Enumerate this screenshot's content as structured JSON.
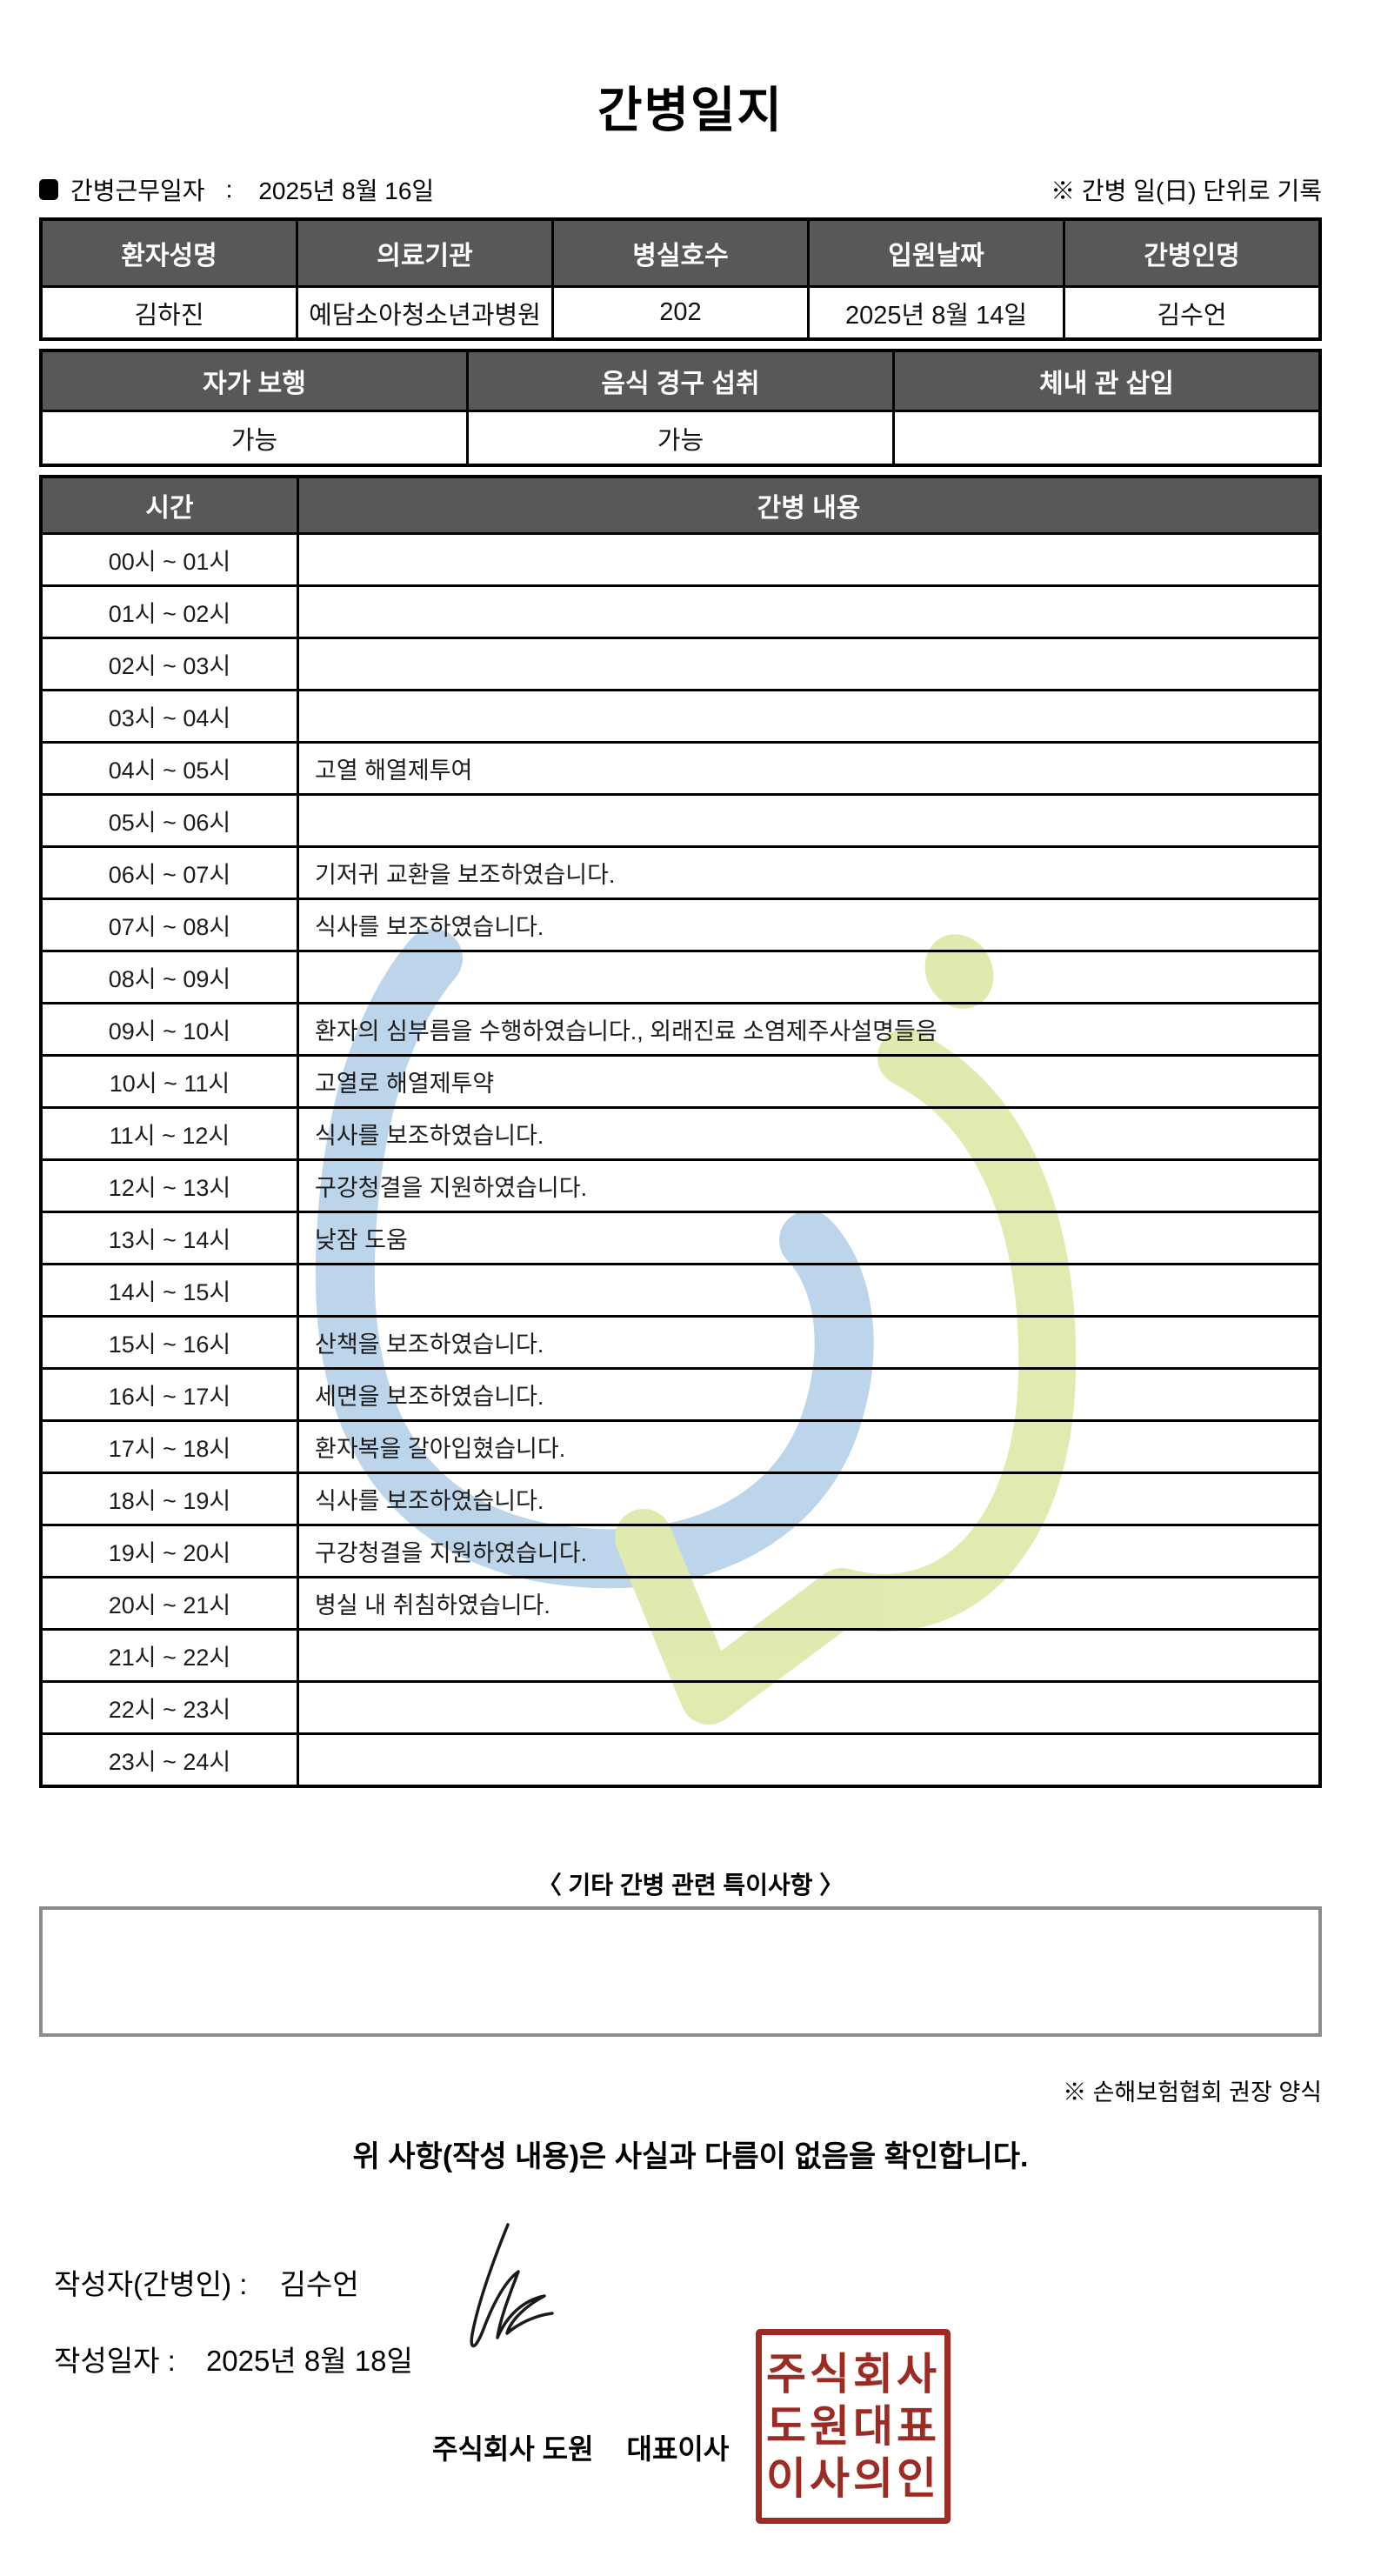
{
  "title": "간병일지",
  "meta": {
    "work_date_label": "간병근무일자",
    "work_date_separator": ":",
    "work_date_value": "2025년 8월 16일",
    "unit_note": "※ 간병 일(日) 단위로 기록"
  },
  "icons": {
    "work_date_bullet": "filled-black-square",
    "watermark": "blue-green-swirl-logo",
    "signature": "handwritten-signature-scribble"
  },
  "patient_table": {
    "headers": [
      "환자성명",
      "의료기관",
      "병실호수",
      "입원날짜",
      "간병인명"
    ],
    "values": [
      "김하진",
      "예담소아청소년과병원",
      "202",
      "2025년 8월 14일",
      "김수언"
    ]
  },
  "status_table": {
    "headers": [
      "자가 보행",
      "음식 경구 섭취",
      "체내 관 삽입"
    ],
    "values": [
      "가능",
      "가능",
      ""
    ]
  },
  "care_table": {
    "time_header": "시간",
    "content_header": "간병 내용",
    "rows": [
      {
        "time": "00시 ~ 01시",
        "content": ""
      },
      {
        "time": "01시 ~ 02시",
        "content": ""
      },
      {
        "time": "02시 ~ 03시",
        "content": ""
      },
      {
        "time": "03시 ~ 04시",
        "content": ""
      },
      {
        "time": "04시 ~ 05시",
        "content": "고열 해열제투여"
      },
      {
        "time": "05시 ~ 06시",
        "content": ""
      },
      {
        "time": "06시 ~ 07시",
        "content": "기저귀 교환을 보조하였습니다."
      },
      {
        "time": "07시 ~ 08시",
        "content": "식사를 보조하였습니다."
      },
      {
        "time": "08시 ~ 09시",
        "content": ""
      },
      {
        "time": "09시 ~ 10시",
        "content": "환자의 심부름을 수행하였습니다., 외래진료 소염제주사설명들음"
      },
      {
        "time": "10시 ~ 11시",
        "content": "고열로 해열제투약"
      },
      {
        "time": "11시 ~ 12시",
        "content": "식사를 보조하였습니다."
      },
      {
        "time": "12시 ~ 13시",
        "content": "구강청결을 지원하였습니다."
      },
      {
        "time": "13시 ~ 14시",
        "content": "낮잠 도움"
      },
      {
        "time": "14시 ~ 15시",
        "content": ""
      },
      {
        "time": "15시 ~ 16시",
        "content": "산책을 보조하였습니다."
      },
      {
        "time": "16시 ~ 17시",
        "content": "세면을 보조하였습니다."
      },
      {
        "time": "17시 ~ 18시",
        "content": "환자복을 갈아입혔습니다."
      },
      {
        "time": "18시 ~ 19시",
        "content": "식사를 보조하였습니다."
      },
      {
        "time": "19시 ~ 20시",
        "content": "구강청결을 지원하였습니다."
      },
      {
        "time": "20시 ~ 21시",
        "content": "병실 내 취침하였습니다."
      },
      {
        "time": "21시 ~ 22시",
        "content": ""
      },
      {
        "time": "22시 ~ 23시",
        "content": ""
      },
      {
        "time": "23시 ~ 24시",
        "content": ""
      }
    ]
  },
  "notes": {
    "heading": "〈 기타 간병 관련 특이사항 〉",
    "content": "",
    "form_note": "※ 손해보험협회 권장 양식"
  },
  "confirmation": {
    "statement": "위 사항(작성 내용)은 사실과 다름이 없음을 확인합니다.",
    "writer_label": "작성자(간병인) :",
    "writer_name": "김수언",
    "date_label": "작성일자 :",
    "date_value": "2025년 8월 18일",
    "company_name": "주식회사 도원",
    "ceo_label": "대표이사",
    "stamp_lines": [
      "주식회사",
      "도원대표",
      "이사의인"
    ]
  },
  "colors": {
    "header_bg": "#58585a",
    "border_black": "#000000",
    "notes_box_border": "#8c8c8c",
    "stamp_red": "#9c2b23",
    "watermark_blue": "#b9d3e9",
    "watermark_green": "#dfe9ab"
  }
}
